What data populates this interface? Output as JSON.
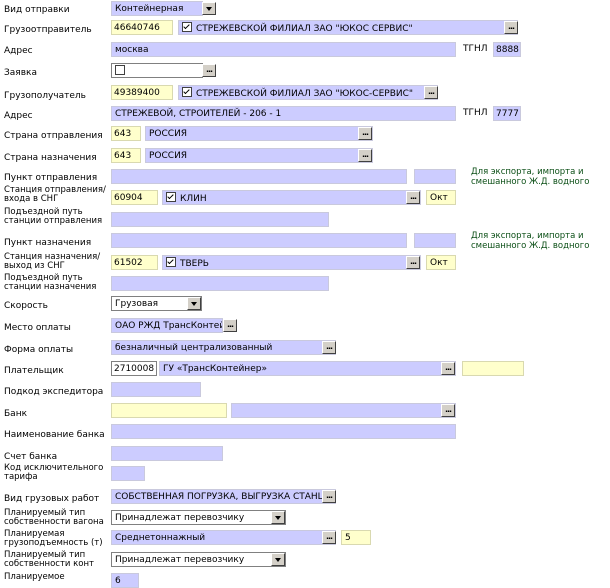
{
  "fields": {
    "shipment_type": {
      "label": "Вид отправки",
      "value": "Контейнерная"
    },
    "shipper": {
      "label": "Грузоотправитель",
      "code": "46640746",
      "name": "СТРЕЖЕВСКОЙ ФИЛИАЛ ЗАО \"ЮКОС СЕРВИС\""
    },
    "shipper_address": {
      "label": "Адрес",
      "value": "москва",
      "tgnl_label": "ТГНЛ",
      "tgnl": "8888"
    },
    "request": {
      "label": "Заявка"
    },
    "consignee": {
      "label": "Грузополучатель",
      "code": "49389400",
      "name": "СТРЕЖЕВСКОЙ ФИЛИАЛ ЗАО \"ЮКОС-СЕРВИС\""
    },
    "consignee_address": {
      "label": "Адрес",
      "value": "СТРЕЖЕВОЙ, СТРОИТЕЛЕЙ - 206 - 1",
      "tgnl_label": "ТГНЛ",
      "tgnl": "7777"
    },
    "departure_country": {
      "label": "Страна отправления",
      "code": "643",
      "name": "РОССИЯ"
    },
    "destination_country": {
      "label": "Страна назначения",
      "code": "643",
      "name": "РОССИЯ"
    },
    "departure_point": {
      "label": "Пункт отправления"
    },
    "export_note_1": "Для экспорта, импорта и смешанного Ж.Д. водного",
    "departure_station": {
      "label": "Станция отправления/ входа в СНГ",
      "code": "60904",
      "name": "КЛИН",
      "road": "Окт"
    },
    "departure_siding": {
      "label": "Подъездной путь станции отправления"
    },
    "destination_point": {
      "label": "Пункт назначения"
    },
    "export_note_2": "Для экспорта, импорта и смешанного Ж.Д. водного",
    "destination_station": {
      "label": "Станция назначения/ выход из СНГ",
      "code": "61502",
      "name": "ТВЕРЬ",
      "road": "Окт"
    },
    "destination_siding": {
      "label": "Подъездной путь станции назначения"
    },
    "speed": {
      "label": "Скорость",
      "value": "Грузовая"
    },
    "payment_place": {
      "label": "Место оплаты",
      "value": "ОАО РЖД ТрансКонтейнер"
    },
    "payment_form": {
      "label": "Форма оплаты",
      "value": "безналичный централизованный"
    },
    "payer": {
      "label": "Плательщик",
      "code": "2710008",
      "name": "ГУ «ТрансКонтейнер»"
    },
    "forwarder_code": {
      "label": "Подкод экспедитора"
    },
    "bank": {
      "label": "Банк"
    },
    "bank_name": {
      "label": "Наименование банка"
    },
    "bank_account": {
      "label": "Счет банка"
    },
    "exclusive_tariff": {
      "label": "Код исключительного тарифа"
    },
    "cargo_works": {
      "label": "Вид грузовых работ",
      "value": "СОБСТВЕННАЯ ПОГРУЗКА, ВЫГРУЗКА СТАНЦИЯ"
    },
    "wagon_ownership": {
      "label": "Планируемый тип собственности вагона",
      "value": "Принадлежат перевозчику"
    },
    "capacity": {
      "label": "Планируемая грузоподъемность (т)",
      "value": "Среднетоннажный",
      "tons": "5"
    },
    "container_ownership": {
      "label": "Планируемый тип собственности конт",
      "value": "Принадлежат перевозчику"
    },
    "planned": {
      "label": "Планируемое",
      "value": "6"
    }
  },
  "icons": {
    "ellipsis": "...",
    "dropdown": "chevron-down-icon"
  }
}
